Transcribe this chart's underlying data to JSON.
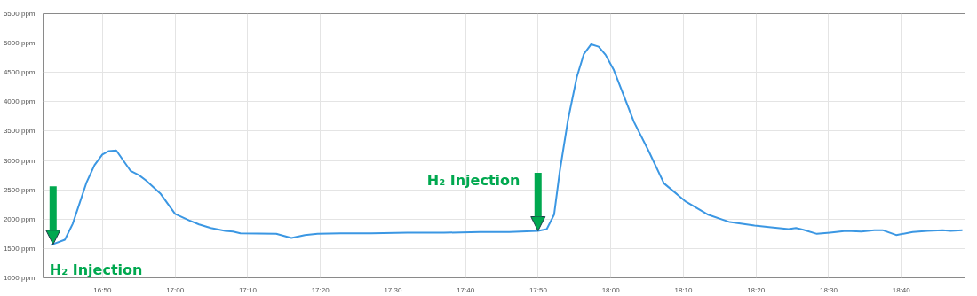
{
  "chart_data": {
    "type": "line",
    "x": [
      16.715,
      16.747,
      16.765,
      16.797,
      16.815,
      16.833,
      16.848,
      16.865,
      16.898,
      16.917,
      16.933,
      16.967,
      17.0,
      17.032,
      17.055,
      17.082,
      17.115,
      17.133,
      17.15,
      17.232,
      17.267,
      17.298,
      17.327,
      17.38,
      17.45,
      17.533,
      17.617,
      17.7,
      17.767,
      17.833,
      17.853,
      17.87,
      17.883,
      17.902,
      17.922,
      17.938,
      17.955,
      17.972,
      17.988,
      18.007,
      18.03,
      18.053,
      18.087,
      18.122,
      18.172,
      18.222,
      18.273,
      18.33,
      18.368,
      18.408,
      18.425,
      18.442,
      18.473,
      18.503,
      18.54,
      18.575,
      18.605,
      18.625,
      18.655,
      18.693,
      18.727,
      18.762,
      18.78,
      18.807
    ],
    "series": [
      {
        "color": "#3b97e3",
        "values": [
          1560,
          1650,
          1920,
          2630,
          2920,
          3100,
          3160,
          3170,
          2820,
          2750,
          2660,
          2430,
          2090,
          1980,
          1910,
          1850,
          1800,
          1790,
          1760,
          1750,
          1680,
          1730,
          1750,
          1760,
          1760,
          1770,
          1770,
          1780,
          1780,
          1800,
          1830,
          2080,
          2820,
          3700,
          4420,
          4810,
          4980,
          4940,
          4800,
          4540,
          4100,
          3660,
          3160,
          2610,
          2300,
          2080,
          1950,
          1890,
          1860,
          1830,
          1850,
          1820,
          1750,
          1770,
          1800,
          1790,
          1810,
          1810,
          1730,
          1780,
          1800,
          1810,
          1800,
          1810
        ]
      }
    ],
    "xlim": [
      16.697,
      18.813
    ],
    "ylim": [
      1000,
      5500
    ],
    "xticks": [
      {
        "value": 16.8333,
        "label": "16:50"
      },
      {
        "value": 17.0,
        "label": "17:00"
      },
      {
        "value": 17.1667,
        "label": "17:10"
      },
      {
        "value": 17.3333,
        "label": "17:20"
      },
      {
        "value": 17.5,
        "label": "17:30"
      },
      {
        "value": 17.6667,
        "label": "17:40"
      },
      {
        "value": 17.8333,
        "label": "17:50"
      },
      {
        "value": 18.0,
        "label": "18:00"
      },
      {
        "value": 18.1667,
        "label": "18:10"
      },
      {
        "value": 18.3333,
        "label": "18:20"
      },
      {
        "value": 18.5,
        "label": "18:30"
      },
      {
        "value": 18.6667,
        "label": "18:40"
      }
    ],
    "yticks": [
      {
        "value": 1000,
        "label": "1000 ppm"
      },
      {
        "value": 1500,
        "label": "1500 ppm"
      },
      {
        "value": 2000,
        "label": "2000 ppm"
      },
      {
        "value": 2500,
        "label": "2500 ppm"
      },
      {
        "value": 3000,
        "label": "3000 ppm"
      },
      {
        "value": 3500,
        "label": "3500 ppm"
      },
      {
        "value": 4000,
        "label": "4000 ppm"
      },
      {
        "value": 4500,
        "label": "4500 ppm"
      },
      {
        "value": 5000,
        "label": "5000 ppm"
      },
      {
        "value": 5500,
        "label": "5500 ppm"
      }
    ],
    "grid": true,
    "annotations": [
      {
        "text": "H₂ Injection",
        "x": 16.72,
        "y": 1570
      },
      {
        "text": "H₂ Injection",
        "x": 17.833,
        "y": 1800
      }
    ]
  }
}
